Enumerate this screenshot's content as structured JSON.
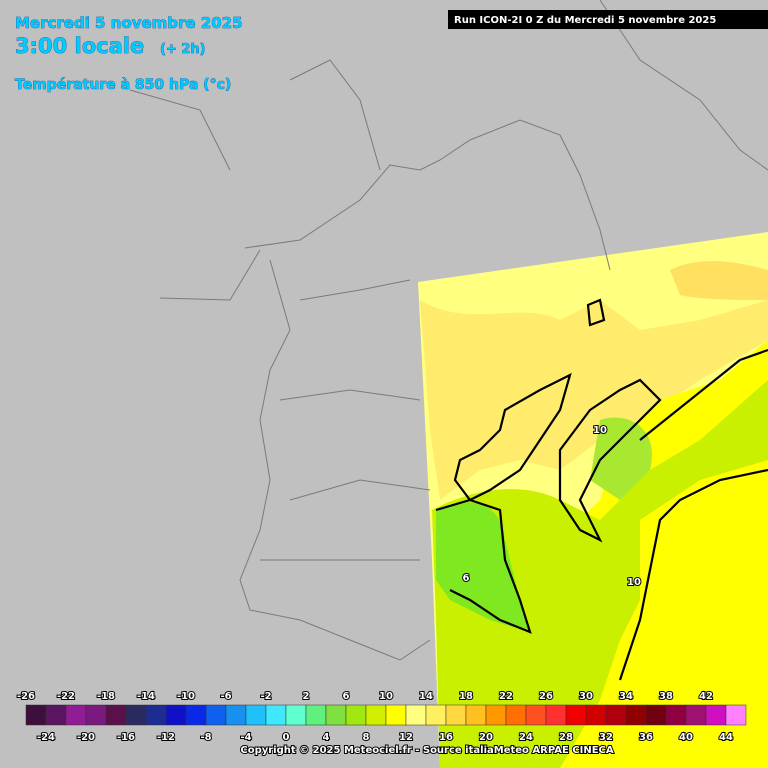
{
  "header": {
    "date": "Mercredi 5 novembre 2025",
    "time": "3:00 locale",
    "offset": "(+ 2h)",
    "variable": "Température à 850 hPa (°c)",
    "run": "Run ICON-2I 0 Z du Mercredi 5 novembre 2025"
  },
  "contour_labels": [
    "6",
    "10",
    "10"
  ],
  "legend": {
    "ticks": [
      -26,
      -24,
      -22,
      -20,
      -18,
      -16,
      -14,
      -12,
      -10,
      -8,
      -6,
      -4,
      -2,
      0,
      2,
      4,
      6,
      8,
      10,
      12,
      14,
      16,
      18,
      20,
      22,
      24,
      26,
      28,
      30,
      32,
      34,
      36,
      38,
      40,
      42,
      44
    ],
    "colors": [
      "#3c0f3c",
      "#5a1560",
      "#901c96",
      "#7a1a80",
      "#5a1048",
      "#2a2a60",
      "#1c2c90",
      "#1010c8",
      "#0a28e6",
      "#1060f0",
      "#1890f0",
      "#20c0f8",
      "#40e8ff",
      "#60ffd0",
      "#60f080",
      "#80e040",
      "#a0e810",
      "#d0f000",
      "#ffff00",
      "#ffff80",
      "#fff060",
      "#ffd840",
      "#ffc020",
      "#ff9800",
      "#ff7000",
      "#ff5020",
      "#ff3030",
      "#f00000",
      "#d00000",
      "#b00010",
      "#900000",
      "#700010",
      "#900040",
      "#a01070",
      "#d010c0",
      "#ff80ff"
    ]
  },
  "footer": {
    "copyright": "Copyright © 2025 Meteociel.fr - Source italiaMeteo ARPAE CINECA"
  }
}
